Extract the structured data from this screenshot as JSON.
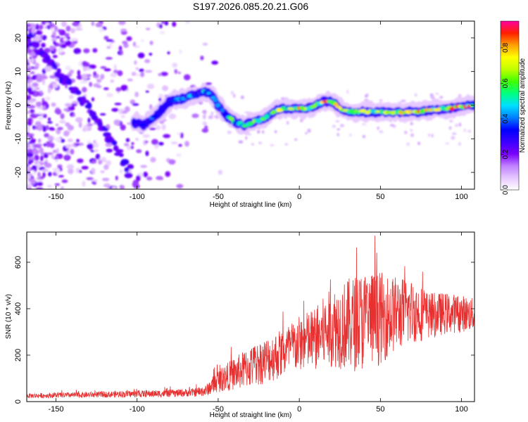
{
  "chart_data": [
    {
      "type": "heatmap",
      "title": "S197.2026.085.20.21.G06",
      "xlabel": "Height of straight line (km)",
      "ylabel": "Frequency (Hz)",
      "xlim": [
        -168,
        108
      ],
      "ylim": [
        -25,
        25
      ],
      "x_ticks": [
        -150,
        -100,
        -50,
        0,
        50,
        100
      ],
      "x_tick_labels": [
        "-150",
        "-100",
        "-50",
        "0",
        "50",
        "100"
      ],
      "y_ticks": [
        -20,
        -10,
        0,
        10,
        20
      ],
      "y_tick_labels": [
        "-20",
        "-10",
        "0",
        "10",
        "20"
      ],
      "colorbar": {
        "label": "Normalized spectral amplitude",
        "range": [
          0,
          0.95
        ],
        "ticks": [
          0,
          0.2,
          0.4,
          0.6,
          0.8
        ],
        "tick_labels": [
          "0.0",
          "0.2",
          "0.4",
          "0.6",
          "0.8"
        ],
        "colors": [
          "#ffffff",
          "#e6c8ff",
          "#c080ff",
          "#7a00ff",
          "#3a00ff",
          "#0000ff",
          "#0080ff",
          "#00e0ff",
          "#00ff80",
          "#40ff00",
          "#c0ff00",
          "#ffff00",
          "#ffa000",
          "#ff2000",
          "#ff00a0"
        ]
      },
      "main_trace": {
        "description_points_x": [
          -102,
          -96,
          -88,
          -80,
          -72,
          -64,
          -58,
          -54,
          -50,
          -45,
          -40,
          -34,
          -28,
          -22,
          -16,
          -10,
          -5,
          0,
          5,
          10,
          15,
          20,
          25,
          30,
          40,
          50,
          60,
          70,
          80,
          90,
          100,
          107
        ],
        "frequency_hz": [
          -5,
          -6,
          -3,
          1,
          2,
          3,
          4,
          3,
          0,
          -3,
          -5,
          -6,
          -5,
          -4,
          -2,
          -1,
          -1,
          -1,
          -1,
          0,
          1,
          1,
          -1,
          -2,
          -2,
          -2,
          -2,
          -2,
          -1.5,
          -1,
          -0.5,
          0
        ],
        "amplitude": [
          0.3,
          0.35,
          0.4,
          0.45,
          0.5,
          0.45,
          0.5,
          0.4,
          0.5,
          0.55,
          0.6,
          0.6,
          0.65,
          0.7,
          0.7,
          0.75,
          0.7,
          0.8,
          0.75,
          0.8,
          0.85,
          0.75,
          0.7,
          0.65,
          0.7,
          0.75,
          0.7,
          0.8,
          0.75,
          0.8,
          0.85,
          0.9
        ]
      },
      "diagonal_trace": {
        "x": [
          -168,
          -160,
          -150,
          -140,
          -130,
          -120,
          -110,
          -105
        ],
        "frequency_hz": [
          21,
          16,
          10,
          5,
          -1,
          -7,
          -15,
          -20
        ]
      }
    },
    {
      "type": "line",
      "xlabel": "Height of straight line (km)",
      "ylabel": "SNR (10 * v/v)",
      "xlim": [
        -168,
        108
      ],
      "ylim": [
        0,
        730
      ],
      "x_ticks": [
        -150,
        -100,
        -50,
        0,
        50,
        100
      ],
      "x_tick_labels": [
        "-150",
        "-100",
        "-50",
        "0",
        "50",
        "100"
      ],
      "y_ticks": [
        0,
        200,
        400,
        600
      ],
      "y_tick_labels": [
        "0",
        "200",
        "400",
        "600"
      ],
      "line_color": "#e83030",
      "envelope": {
        "x": [
          -168,
          -140,
          -110,
          -80,
          -65,
          -58,
          -50,
          -40,
          -30,
          -20,
          -10,
          0,
          10,
          20,
          30,
          40,
          50,
          60,
          70,
          80,
          90,
          100,
          108
        ],
        "mean": [
          25,
          28,
          32,
          35,
          40,
          45,
          90,
          120,
          150,
          180,
          210,
          250,
          270,
          320,
          330,
          350,
          360,
          380,
          390,
          370,
          380,
          380,
          375
        ],
        "spread": [
          10,
          12,
          14,
          16,
          18,
          22,
          50,
          70,
          90,
          100,
          110,
          120,
          140,
          170,
          200,
          220,
          200,
          160,
          140,
          100,
          90,
          80,
          70
        ]
      }
    }
  ]
}
